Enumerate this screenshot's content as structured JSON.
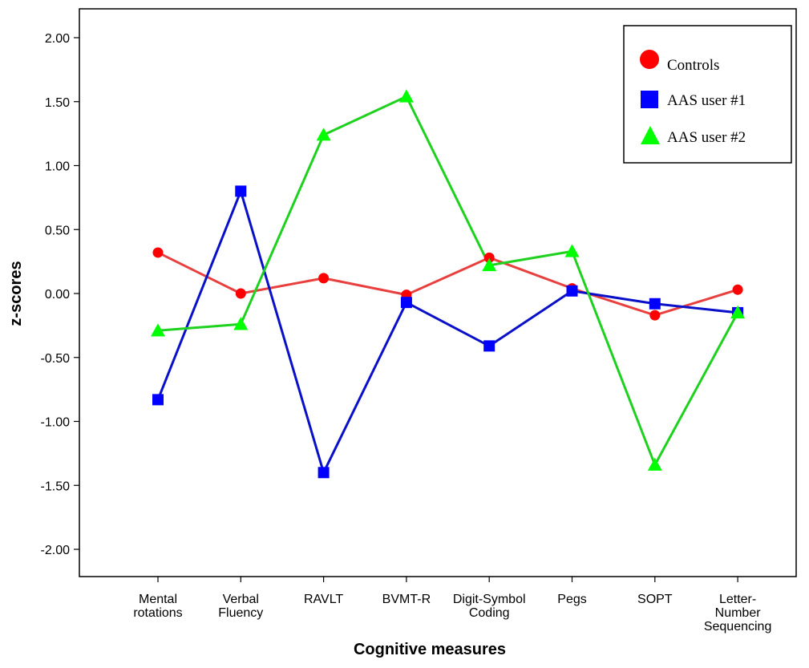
{
  "chart_data": {
    "type": "line",
    "title": "",
    "xlabel": "Cognitive measures",
    "ylabel": "z-scores",
    "ylim": [
      -2.25,
      2.25
    ],
    "yticks": [
      2.0,
      1.5,
      1.0,
      0.5,
      0.0,
      -0.5,
      -1.0,
      -1.5,
      -2.0
    ],
    "ytick_labels": [
      "2.00",
      "1.50",
      "1.00",
      "0.50",
      "0.00",
      "-0.50",
      "-1.00",
      "-1.50",
      "-2.00"
    ],
    "categories": [
      [
        "Mental",
        "rotations"
      ],
      [
        "Verbal",
        "Fluency"
      ],
      [
        "RAVLT"
      ],
      [
        "BVMT-R"
      ],
      [
        "Digit-Symbol",
        "Coding"
      ],
      [
        "Pegs"
      ],
      [
        "SOPT"
      ],
      [
        "Letter-",
        "Number",
        "Sequencing"
      ]
    ],
    "series": [
      {
        "name": "Controls",
        "marker": "circle",
        "color": "#e8403f",
        "values": [
          0.32,
          0.0,
          0.12,
          -0.01,
          0.28,
          0.04,
          -0.17,
          0.03
        ]
      },
      {
        "name": "AAS user #1",
        "marker": "square",
        "color": "#0a10c8",
        "values": [
          -0.83,
          0.8,
          -1.4,
          -0.07,
          -0.41,
          0.02,
          -0.08,
          -0.15
        ]
      },
      {
        "name": "AAS user #2",
        "marker": "triangle",
        "color": "#1fd11f",
        "values": [
          -0.29,
          -0.24,
          1.24,
          1.54,
          0.22,
          0.33,
          -1.34,
          -0.15
        ]
      }
    ],
    "legend_position": "top-right",
    "grid": false
  },
  "colors": {
    "controls_marker": "#ff0000",
    "aas1_marker": "#0000ff",
    "aas2_marker": "#00ff00"
  }
}
